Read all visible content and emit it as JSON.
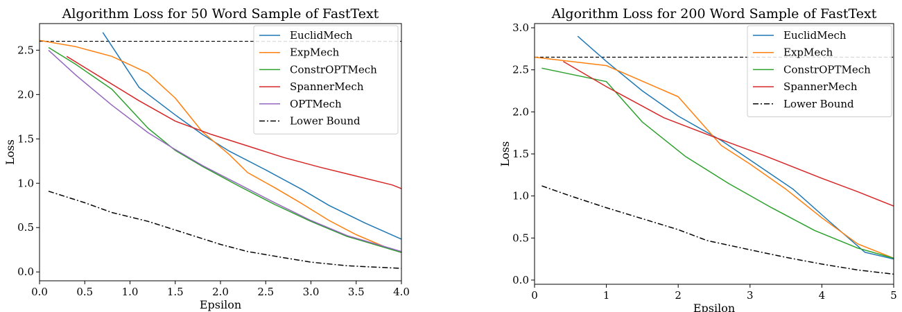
{
  "chart_data": [
    {
      "type": "line",
      "title": "Algorithm Loss for 50 Word Sample of FastText",
      "xlabel": "Epsilon",
      "ylabel": "Loss",
      "xlim": [
        0,
        4
      ],
      "ylim": [
        -0.1,
        2.8
      ],
      "xticks": [
        "0.0",
        "0.5",
        "1.0",
        "1.5",
        "2.0",
        "2.5",
        "3.0",
        "3.5",
        "4.0"
      ],
      "yticks": [
        "0.0",
        "0.5",
        "1.0",
        "1.5",
        "2.0",
        "2.5"
      ],
      "legend": "top-right",
      "reference_line": {
        "y": 2.6,
        "color": "#000000",
        "style": "dashed"
      },
      "series": [
        {
          "name": "EuclidMech",
          "color": "#1f77b4",
          "style": "solid",
          "x": [
            0.7,
            1.1,
            1.5,
            1.8,
            2.1,
            2.5,
            2.9,
            3.2,
            3.6,
            4.0
          ],
          "y": [
            2.7,
            2.08,
            1.77,
            1.55,
            1.36,
            1.15,
            0.93,
            0.75,
            0.55,
            0.37
          ]
        },
        {
          "name": "ExpMech",
          "color": "#ff7f0e",
          "style": "solid",
          "x": [
            0.0,
            0.4,
            0.8,
            1.2,
            1.5,
            1.8,
            2.1,
            2.3,
            2.6,
            2.9,
            3.2,
            3.5,
            3.8,
            4.0
          ],
          "y": [
            2.61,
            2.54,
            2.43,
            2.24,
            1.96,
            1.58,
            1.32,
            1.12,
            0.95,
            0.77,
            0.58,
            0.42,
            0.29,
            0.22
          ]
        },
        {
          "name": "ConstrOPTMech",
          "color": "#2ca02c",
          "style": "solid",
          "x": [
            0.1,
            0.4,
            0.8,
            1.2,
            1.5,
            1.8,
            2.2,
            2.6,
            3.0,
            3.4,
            3.8,
            4.0
          ],
          "y": [
            2.53,
            2.34,
            2.06,
            1.62,
            1.37,
            1.19,
            0.97,
            0.76,
            0.57,
            0.4,
            0.28,
            0.22
          ]
        },
        {
          "name": "SpannerMech",
          "color": "#d62728",
          "style": "solid",
          "x": [
            0.3,
            0.7,
            1.1,
            1.5,
            1.9,
            2.3,
            2.7,
            3.1,
            3.5,
            3.9,
            4.0
          ],
          "y": [
            2.43,
            2.18,
            1.93,
            1.7,
            1.55,
            1.42,
            1.29,
            1.18,
            1.08,
            0.98,
            0.94
          ]
        },
        {
          "name": "OPTMech",
          "color": "#9467bd",
          "style": "solid",
          "x": [
            0.1,
            0.4,
            0.8,
            1.2,
            1.5,
            1.8,
            2.2,
            2.6,
            3.0,
            3.4,
            3.8,
            4.0
          ],
          "y": [
            2.5,
            2.22,
            1.88,
            1.57,
            1.38,
            1.2,
            0.99,
            0.78,
            0.58,
            0.41,
            0.29,
            0.23
          ]
        },
        {
          "name": "Lower Bound",
          "color": "#000000",
          "style": "dashdot",
          "x": [
            0.1,
            0.5,
            0.8,
            1.2,
            1.6,
            2.0,
            2.3,
            2.7,
            3.0,
            3.4,
            3.8,
            4.0
          ],
          "y": [
            0.91,
            0.78,
            0.67,
            0.57,
            0.44,
            0.31,
            0.23,
            0.16,
            0.11,
            0.07,
            0.05,
            0.04
          ]
        }
      ]
    },
    {
      "type": "line",
      "title": "Algorithm Loss for 200 Word Sample of FastText",
      "xlabel": "Epsilon",
      "ylabel": "Loss",
      "xlim": [
        0,
        5
      ],
      "ylim": [
        -0.05,
        3.05
      ],
      "xticks": [
        "0",
        "1",
        "2",
        "3",
        "4",
        "5"
      ],
      "yticks": [
        "0.0",
        "0.5",
        "1.0",
        "1.5",
        "2.0",
        "2.5",
        "3.0"
      ],
      "legend": "top-right",
      "reference_line": {
        "y": 2.65,
        "color": "#000000",
        "style": "dashed"
      },
      "series": [
        {
          "name": "EuclidMech",
          "color": "#1f77b4",
          "style": "solid",
          "x": [
            0.6,
            1.0,
            1.5,
            2.0,
            2.6,
            3.1,
            3.6,
            4.1,
            4.6,
            5.0
          ],
          "y": [
            2.9,
            2.6,
            2.25,
            1.95,
            1.66,
            1.37,
            1.08,
            0.7,
            0.33,
            0.25
          ]
        },
        {
          "name": "ExpMech",
          "color": "#ff7f0e",
          "style": "solid",
          "x": [
            0.0,
            1.0,
            2.0,
            2.6,
            3.0,
            3.5,
            4.0,
            4.5,
            5.0
          ],
          "y": [
            2.65,
            2.55,
            2.18,
            1.6,
            1.38,
            1.08,
            0.74,
            0.43,
            0.26
          ]
        },
        {
          "name": "ConstrOPTMech",
          "color": "#2ca02c",
          "style": "solid",
          "x": [
            0.1,
            1.0,
            1.5,
            2.1,
            2.7,
            3.3,
            3.9,
            4.5,
            5.0
          ],
          "y": [
            2.52,
            2.36,
            1.88,
            1.47,
            1.15,
            0.86,
            0.59,
            0.38,
            0.26
          ]
        },
        {
          "name": "SpannerMech",
          "color": "#d62728",
          "style": "solid",
          "x": [
            0.4,
            1.0,
            1.8,
            2.5,
            3.2,
            4.0,
            4.5,
            5.0
          ],
          "y": [
            2.6,
            2.3,
            1.93,
            1.7,
            1.48,
            1.21,
            1.05,
            0.88
          ]
        },
        {
          "name": "Lower Bound",
          "color": "#000000",
          "style": "dashdot",
          "x": [
            0.1,
            0.5,
            1.0,
            1.5,
            2.0,
            2.4,
            3.0,
            3.5,
            4.0,
            4.5,
            5.0
          ],
          "y": [
            1.12,
            1.0,
            0.86,
            0.73,
            0.6,
            0.47,
            0.36,
            0.27,
            0.19,
            0.12,
            0.07
          ]
        }
      ]
    }
  ]
}
